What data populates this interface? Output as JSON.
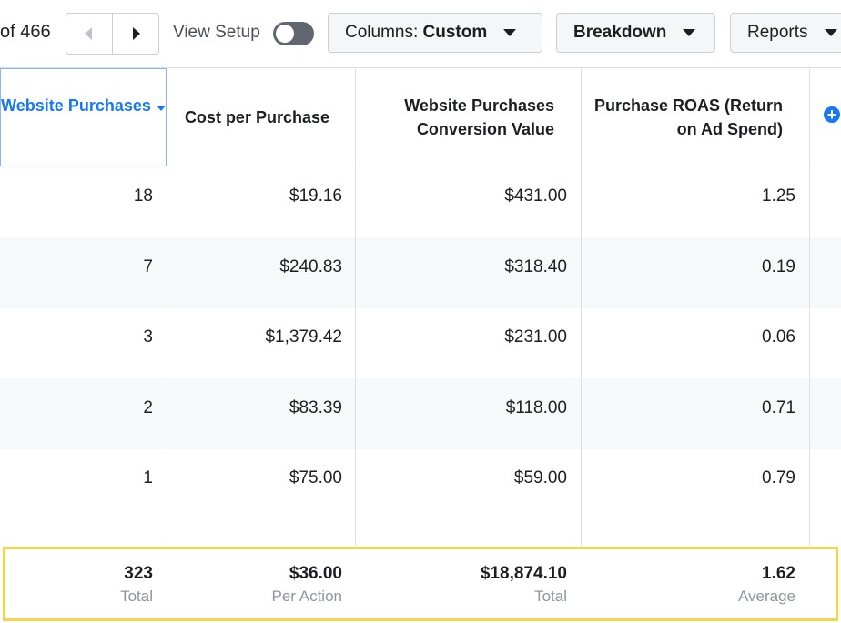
{
  "toolbar": {
    "pagination": "of 466",
    "view_setup": "View Setup",
    "columns_label": "Columns:",
    "columns_value": "Custom",
    "breakdown": "Breakdown",
    "reports": "Reports"
  },
  "table": {
    "headers": [
      "Website Purchases",
      "Cost per Purchase",
      "Website Purchases Conversion Value",
      "Purchase ROAS (Return on Ad Spend)"
    ],
    "rows": [
      [
        "18",
        "$19.16",
        "$431.00",
        "1.25"
      ],
      [
        "7",
        "$240.83",
        "$318.40",
        "0.19"
      ],
      [
        "3",
        "$1,379.42",
        "$231.00",
        "0.06"
      ],
      [
        "2",
        "$83.39",
        "$118.00",
        "0.71"
      ],
      [
        "1",
        "$75.00",
        "$59.00",
        "0.79"
      ]
    ],
    "totals": [
      {
        "value": "323",
        "label": "Total"
      },
      {
        "value": "$36.00",
        "label": "Per Action"
      },
      {
        "value": "$18,874.10",
        "label": "Total"
      },
      {
        "value": "1.62",
        "label": "Average"
      }
    ]
  }
}
